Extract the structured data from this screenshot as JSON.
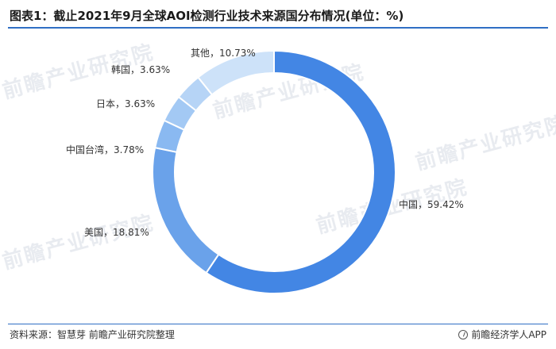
{
  "title": "图表1：截止2021年9月全球AOI检测行业技术来源国分布情况(单位：%)",
  "source": "资料来源：智慧芽 前瞻产业研究院整理",
  "credit": "前瞻经济学人APP",
  "watermark": "前瞻产业研究院",
  "chart_data": {
    "type": "pie",
    "donut": true,
    "title": "图表1：截止2021年9月全球AOI检测行业技术来源国分布情况(单位：%)",
    "unit": "%",
    "slices": [
      {
        "label": "中国",
        "value": 59.42,
        "display": "中国，59.42%",
        "color": "#4386e4"
      },
      {
        "label": "美国",
        "value": 18.81,
        "display": "美国，18.81%",
        "color": "#6aa2ea"
      },
      {
        "label": "中国台湾",
        "value": 3.78,
        "display": "中国台湾，3.78%",
        "color": "#8ab9f1"
      },
      {
        "label": "日本",
        "value": 3.63,
        "display": "日本，3.63%",
        "color": "#a3c9f4"
      },
      {
        "label": "韩国",
        "value": 3.63,
        "display": "韩国，3.63%",
        "color": "#b6d4f6"
      },
      {
        "label": "其他",
        "value": 10.73,
        "display": "其他，10.73%",
        "color": "#cde2f9"
      }
    ]
  }
}
